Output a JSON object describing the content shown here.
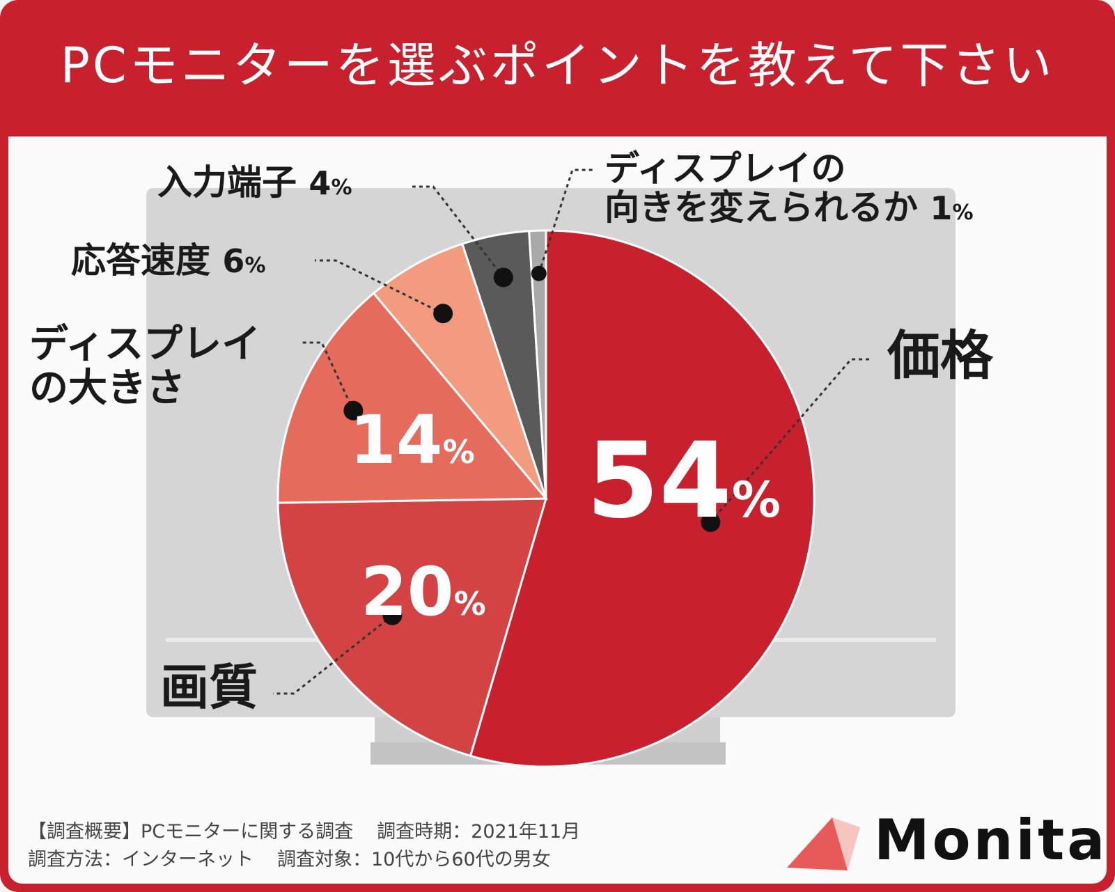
{
  "title": "PCモニターを選ぶポイントを教えて下さい",
  "chart_data": {
    "type": "pie",
    "slices": [
      {
        "label": "価格",
        "value": 54,
        "color": "#c8202c"
      },
      {
        "label": "画質",
        "value": 20,
        "color": "#d44343"
      },
      {
        "label": "ディスプレイの大きさ",
        "value": 14,
        "color": "#e56b5c"
      },
      {
        "label": "応答速度",
        "value": 6,
        "color": "#f29b7f"
      },
      {
        "label": "入力端子",
        "value": 4,
        "color": "#5a5a5a"
      },
      {
        "label": "ディスプレイの向きを変えられるか",
        "value": 1,
        "color": "#a9a9a9"
      }
    ],
    "unit": "%"
  },
  "labels": {
    "price": "価格",
    "quality": "画質",
    "size_line1": "ディスプレイ",
    "size_line2": "の大きさ",
    "response": "応答速度",
    "input": "入力端子",
    "orient_line1": "ディスプレイの",
    "orient_line2": "向きを変えられるか",
    "pct_unit": "%"
  },
  "values": {
    "price": "54",
    "quality": "20",
    "size": "14",
    "response": "6",
    "input": "4",
    "orient": "1"
  },
  "notes": {
    "line1_a": "【調査概要】PCモニターに関する調査",
    "line1_b": "調査時期：2021年11月",
    "line2_a": "調査方法：インターネット",
    "line2_b": "調査対象：10代から60代の男女"
  },
  "brand": {
    "name": "Monita",
    "color": "#e85a5a"
  }
}
